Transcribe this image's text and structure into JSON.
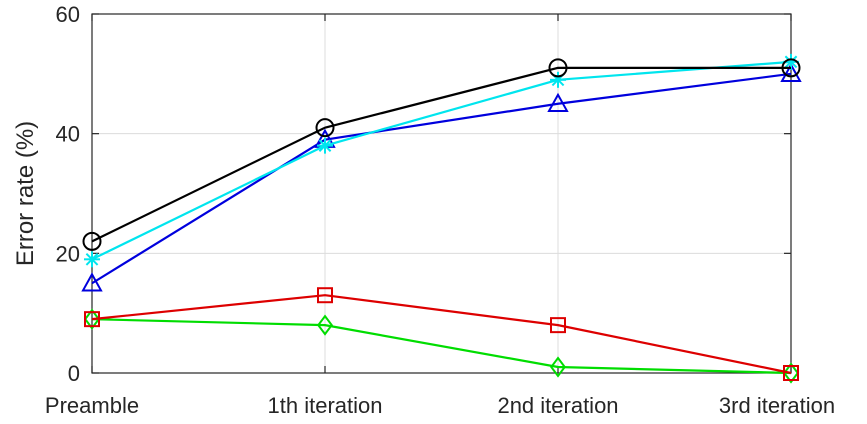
{
  "chart_data": {
    "type": "line",
    "categories": [
      "Preamble",
      "1th iteration",
      "2nd iteration",
      "3rd iteration"
    ],
    "ylabel": "Error rate (%)",
    "xlabel": "",
    "ylim": [
      0,
      60
    ],
    "yticks": [
      0,
      20,
      40,
      60
    ],
    "grid": true,
    "legend": "none",
    "series": [
      {
        "values": [
          22,
          41,
          51,
          51
        ],
        "color": "#000000",
        "marker": "circle"
      },
      {
        "values": [
          19,
          38,
          49,
          52
        ],
        "color": "#00e5ee",
        "marker": "asterisk"
      },
      {
        "values": [
          15,
          39,
          45,
          50
        ],
        "color": "#0000dd",
        "marker": "triangle"
      },
      {
        "values": [
          9,
          13,
          8,
          0
        ],
        "color": "#dd0000",
        "marker": "square"
      },
      {
        "values": [
          9,
          8,
          1,
          0
        ],
        "color": "#00dd00",
        "marker": "diamond"
      }
    ]
  }
}
